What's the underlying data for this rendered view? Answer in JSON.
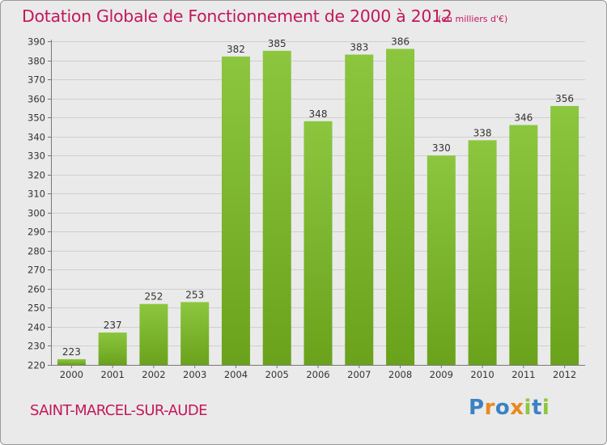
{
  "header": {
    "title": "Dotation Globale de Fonctionnement de 2000 à 2012",
    "subtitle": "(en milliers d'€)"
  },
  "footer": {
    "commune": "SAINT-MARCEL-SUR-AUDE",
    "logo_letters": [
      "P",
      "r",
      "o",
      "x",
      "i",
      "t",
      "i"
    ],
    "logo_colors": [
      "#3b82c4",
      "#e8891c",
      "#3b82c4",
      "#e8891c",
      "#8cc63f",
      "#3b82c4",
      "#8cc63f"
    ]
  },
  "chart_data": {
    "type": "bar",
    "title": "Dotation Globale de Fonctionnement de 2000 à 2012",
    "subtitle": "(en milliers d'€)",
    "categories": [
      "2000",
      "2001",
      "2002",
      "2003",
      "2004",
      "2005",
      "2006",
      "2007",
      "2008",
      "2009",
      "2010",
      "2011",
      "2012"
    ],
    "values": [
      223,
      237,
      252,
      253,
      382,
      385,
      348,
      383,
      386,
      330,
      338,
      346,
      356
    ],
    "ylim": [
      220,
      390
    ],
    "yticks": [
      220,
      230,
      240,
      250,
      260,
      270,
      280,
      290,
      300,
      310,
      320,
      330,
      340,
      350,
      360,
      370,
      380,
      390
    ],
    "grid": true,
    "bar_color": "#8cc63f",
    "bar_color_dark": "#6aa21c",
    "data_labels": true,
    "legend": "none"
  }
}
